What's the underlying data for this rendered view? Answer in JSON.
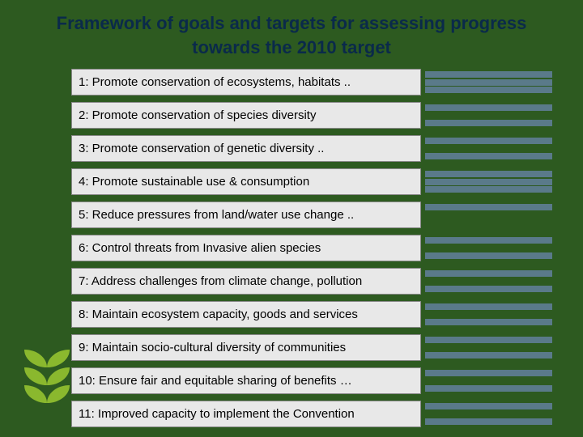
{
  "title": "Framework of goals and targets for assessing progress towards the 2010 target",
  "colors": {
    "background": "#2d5a20",
    "title_text": "#0a2a4a",
    "row_bg": "#e8e8e8",
    "row_border": "#888888",
    "bar": "#5a7a8a",
    "leaf": "#8ab82e"
  },
  "title_fontsize": 22,
  "row_fontsize": 15,
  "rows": [
    {
      "label": "1: Promote conservation of ecosystems, habitats ..",
      "bars": 3
    },
    {
      "label": "2: Promote conservation of species diversity",
      "bars": 2
    },
    {
      "label": "3: Promote conservation of genetic diversity ..",
      "bars": 2
    },
    {
      "label": "4: Promote sustainable use & consumption",
      "bars": 3
    },
    {
      "label": "5: Reduce pressures from land/water use change ..",
      "bars": 1
    },
    {
      "label": "6: Control threats from Invasive alien species",
      "bars": 2
    },
    {
      "label": "7: Address challenges from climate change, pollution",
      "bars": 2
    },
    {
      "label": "8: Maintain ecosystem capacity, goods and services",
      "bars": 2
    },
    {
      "label": "9: Maintain socio-cultural diversity of communities",
      "bars": 2
    },
    {
      "label": "10: Ensure fair and equitable sharing of benefits …",
      "bars": 2
    },
    {
      "label": "11: Improved capacity to implement the Convention",
      "bars": 2
    }
  ]
}
